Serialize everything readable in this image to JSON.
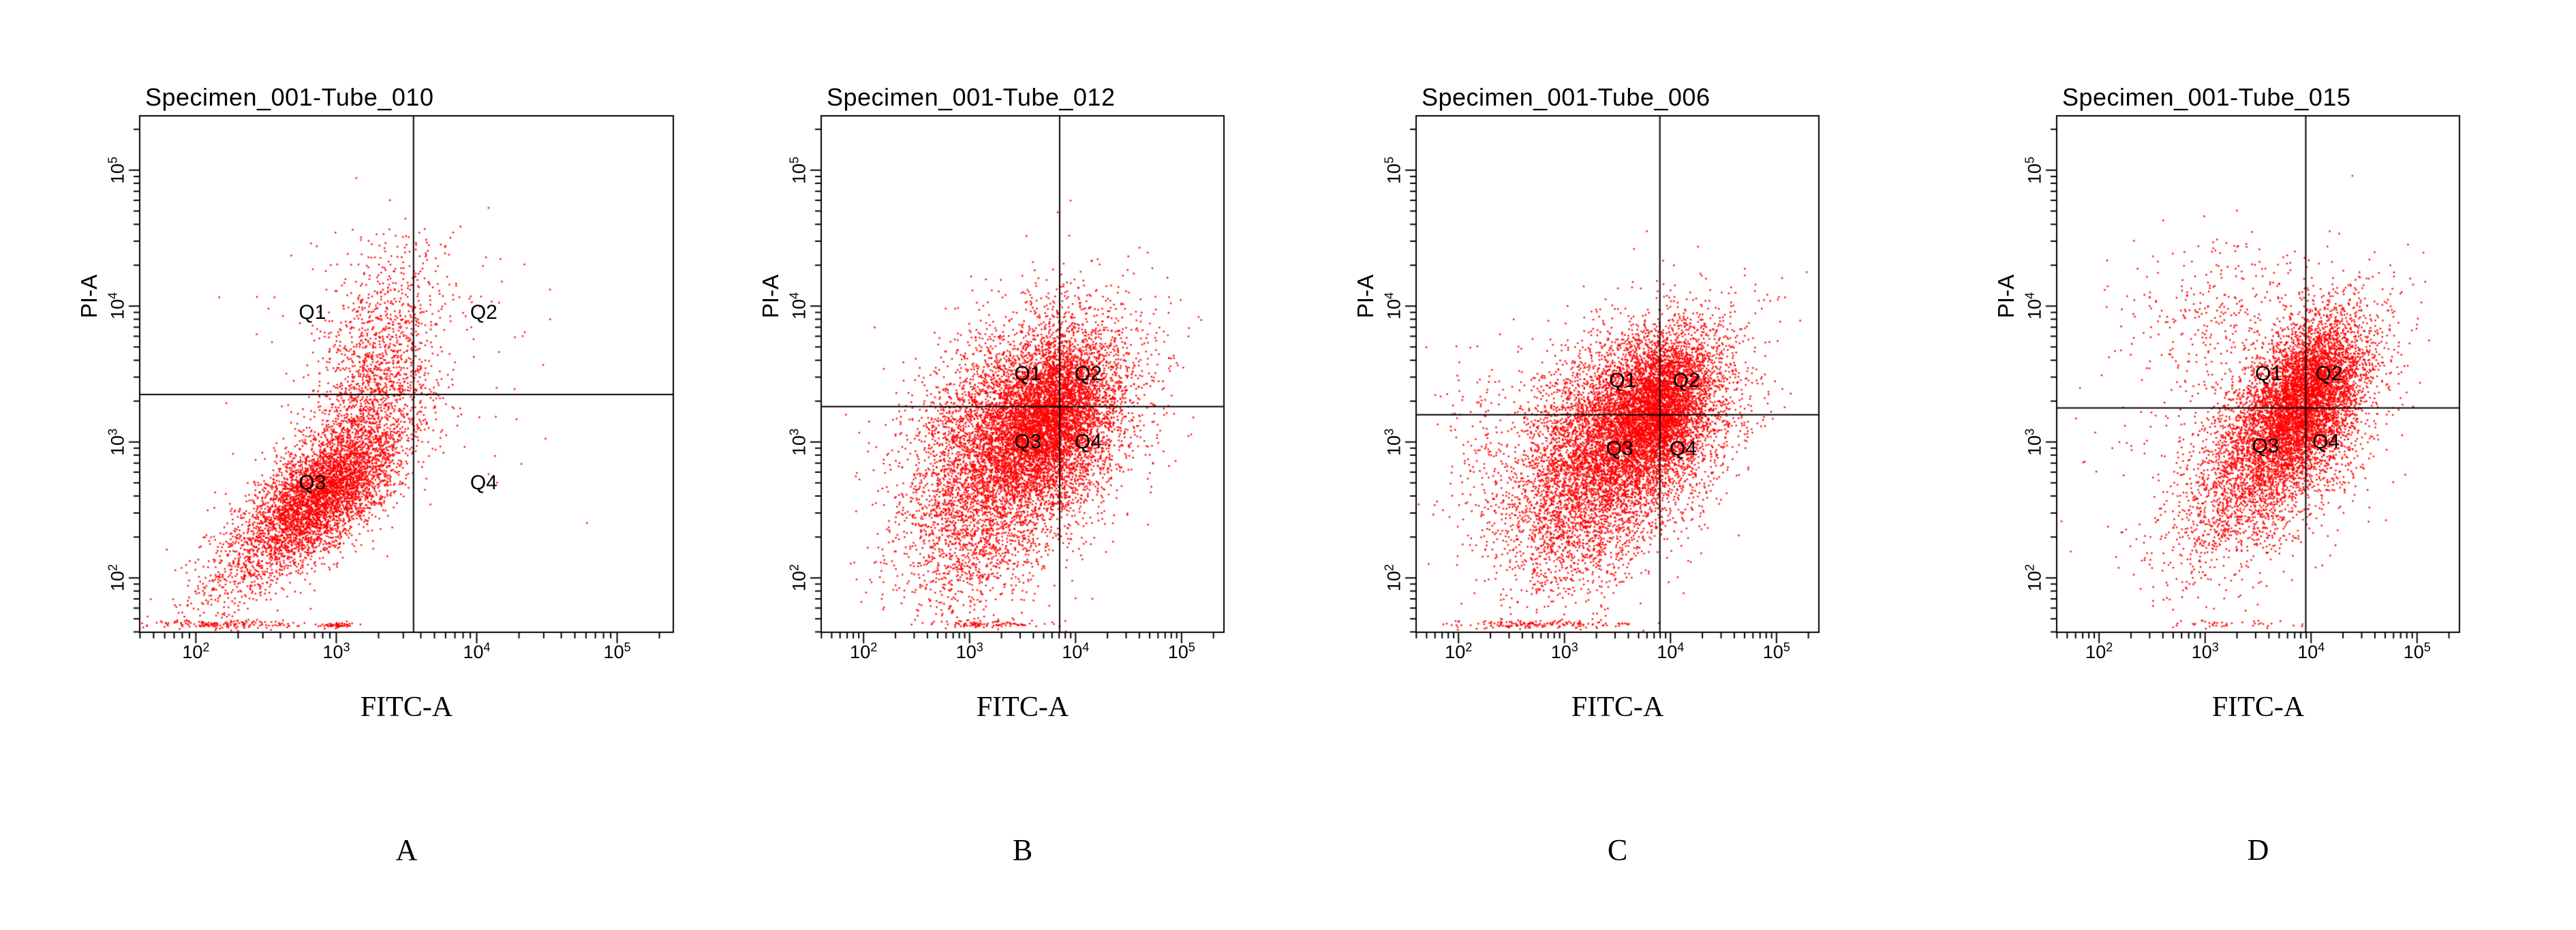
{
  "figure": {
    "background_color": "#FFFFFF",
    "point_color": "#FF0000",
    "axis_color": "#000000"
  },
  "chart_data": [
    {
      "type": "scatter",
      "panel_letter": "A",
      "title": "Specimen_001-Tube_010",
      "xlabel": "FITC-A",
      "ylabel": "PI-A",
      "x_scale": "log10",
      "y_scale": "log10",
      "xlim_log10": [
        1.6,
        5.4
      ],
      "ylim_log10": [
        1.6,
        5.4
      ],
      "x_tick_exponents": [
        2,
        3,
        4,
        5
      ],
      "y_tick_exponents": [
        2,
        3,
        4,
        5
      ],
      "grid": false,
      "quadrant_gate": {
        "x_log10": 3.55,
        "y_log10": 3.35
      },
      "quadrant_labels": [
        {
          "text": "Q1",
          "x_log10": 2.83,
          "y_log10": 3.95
        },
        {
          "text": "Q2",
          "x_log10": 4.05,
          "y_log10": 3.95
        },
        {
          "text": "Q3",
          "x_log10": 2.83,
          "y_log10": 2.7
        },
        {
          "text": "Q4",
          "x_log10": 4.05,
          "y_log10": 2.7
        }
      ],
      "seed": 101,
      "clusters": [
        {
          "count": 4500,
          "mean_log10": [
            2.9,
            2.62
          ],
          "sd_log10": [
            0.28,
            0.27
          ],
          "corr": 0.65
        },
        {
          "count": 1200,
          "mean_log10": [
            3.25,
            3.4
          ],
          "sd_log10": [
            0.22,
            0.35
          ],
          "corr": 0.4
        },
        {
          "count": 250,
          "mean_log10": [
            3.35,
            4.05
          ],
          "sd_log10": [
            0.25,
            0.3
          ],
          "corr": 0.2
        },
        {
          "count": 400,
          "mean_log10": [
            2.35,
            2.1
          ],
          "sd_log10": [
            0.25,
            0.22
          ],
          "corr": 0.5
        },
        {
          "count": 150,
          "mean_log10": [
            2.2,
            1.66
          ],
          "sd_log10": [
            0.25,
            0.015
          ],
          "corr": 0.0
        },
        {
          "count": 60,
          "mean_log10": [
            3.0,
            1.65
          ],
          "sd_log10": [
            0.07,
            0.01
          ],
          "corr": 0.0
        },
        {
          "count": 120,
          "mean_log10": [
            3.6,
            3.6
          ],
          "sd_log10": [
            0.6,
            0.5
          ],
          "corr": 0.1
        }
      ]
    },
    {
      "type": "scatter",
      "panel_letter": "B",
      "title": "Specimen_001-Tube_012",
      "xlabel": "FITC-A",
      "ylabel": "PI-A",
      "x_scale": "log10",
      "y_scale": "log10",
      "xlim_log10": [
        1.6,
        5.4
      ],
      "ylim_log10": [
        1.6,
        5.4
      ],
      "x_tick_exponents": [
        2,
        3,
        4,
        5
      ],
      "y_tick_exponents": [
        2,
        3,
        4,
        5
      ],
      "grid": false,
      "quadrant_gate": {
        "x_log10": 3.85,
        "y_log10": 3.26
      },
      "quadrant_labels": [
        {
          "text": "Q1",
          "x_log10": 3.55,
          "y_log10": 3.5
        },
        {
          "text": "Q2",
          "x_log10": 4.12,
          "y_log10": 3.5
        },
        {
          "text": "Q3",
          "x_log10": 3.55,
          "y_log10": 3.0
        },
        {
          "text": "Q4",
          "x_log10": 4.12,
          "y_log10": 3.0
        }
      ],
      "seed": 202,
      "clusters": [
        {
          "count": 7000,
          "mean_log10": [
            3.5,
            3.05
          ],
          "sd_log10": [
            0.5,
            0.42
          ],
          "corr": 0.35
        },
        {
          "count": 3000,
          "mean_log10": [
            3.8,
            3.2
          ],
          "sd_log10": [
            0.28,
            0.28
          ],
          "corr": 0.3
        },
        {
          "count": 700,
          "mean_log10": [
            3.0,
            2.2
          ],
          "sd_log10": [
            0.35,
            0.25
          ],
          "corr": 0.2
        },
        {
          "count": 100,
          "mean_log10": [
            3.2,
            1.66
          ],
          "sd_log10": [
            0.3,
            0.015
          ],
          "corr": 0.0
        }
      ]
    },
    {
      "type": "scatter",
      "panel_letter": "C",
      "title": "Specimen_001-Tube_006",
      "xlabel": "FITC-A",
      "ylabel": "PI-A",
      "x_scale": "log10",
      "y_scale": "log10",
      "xlim_log10": [
        1.6,
        5.4
      ],
      "ylim_log10": [
        1.6,
        5.4
      ],
      "x_tick_exponents": [
        2,
        3,
        4,
        5
      ],
      "y_tick_exponents": [
        2,
        3,
        4,
        5
      ],
      "grid": false,
      "quadrant_gate": {
        "x_log10": 3.9,
        "y_log10": 3.2
      },
      "quadrant_labels": [
        {
          "text": "Q1",
          "x_log10": 3.55,
          "y_log10": 3.45
        },
        {
          "text": "Q2",
          "x_log10": 4.15,
          "y_log10": 3.45
        },
        {
          "text": "Q3",
          "x_log10": 3.52,
          "y_log10": 2.95
        },
        {
          "text": "Q4",
          "x_log10": 4.12,
          "y_log10": 2.95
        }
      ],
      "seed": 303,
      "clusters": [
        {
          "count": 7000,
          "mean_log10": [
            3.55,
            3.05
          ],
          "sd_log10": [
            0.5,
            0.4
          ],
          "corr": 0.4
        },
        {
          "count": 3000,
          "mean_log10": [
            3.9,
            3.25
          ],
          "sd_log10": [
            0.26,
            0.26
          ],
          "corr": 0.3
        },
        {
          "count": 900,
          "mean_log10": [
            3.1,
            2.35
          ],
          "sd_log10": [
            0.4,
            0.28
          ],
          "corr": 0.25
        },
        {
          "count": 160,
          "mean_log10": [
            2.7,
            1.66
          ],
          "sd_log10": [
            0.45,
            0.015
          ],
          "corr": 0.0
        },
        {
          "count": 120,
          "mean_log10": [
            2.2,
            2.9
          ],
          "sd_log10": [
            0.2,
            0.45
          ],
          "corr": 0.0
        }
      ]
    },
    {
      "type": "scatter",
      "panel_letter": "D",
      "title": "Specimen_001-Tube_015",
      "xlabel": "FITC-A",
      "ylabel": "PI-A",
      "x_scale": "log10",
      "y_scale": "log10",
      "xlim_log10": [
        1.6,
        5.4
      ],
      "ylim_log10": [
        1.6,
        5.4
      ],
      "x_tick_exponents": [
        2,
        3,
        4,
        5
      ],
      "y_tick_exponents": [
        2,
        3,
        4,
        5
      ],
      "grid": false,
      "quadrant_gate": {
        "x_log10": 3.95,
        "y_log10": 3.25
      },
      "quadrant_labels": [
        {
          "text": "Q1",
          "x_log10": 3.6,
          "y_log10": 3.5
        },
        {
          "text": "Q2",
          "x_log10": 4.17,
          "y_log10": 3.5
        },
        {
          "text": "Q3",
          "x_log10": 3.57,
          "y_log10": 2.97
        },
        {
          "text": "Q4",
          "x_log10": 4.14,
          "y_log10": 3.0
        }
      ],
      "seed": 404,
      "clusters": [
        {
          "count": 5000,
          "mean_log10": [
            3.85,
            3.2
          ],
          "sd_log10": [
            0.38,
            0.38
          ],
          "corr": 0.5
        },
        {
          "count": 2000,
          "mean_log10": [
            4.0,
            3.4
          ],
          "sd_log10": [
            0.22,
            0.24
          ],
          "corr": 0.3
        },
        {
          "count": 900,
          "mean_log10": [
            3.3,
            2.65
          ],
          "sd_log10": [
            0.38,
            0.33
          ],
          "corr": 0.5
        },
        {
          "count": 250,
          "mean_log10": [
            3.05,
            3.95
          ],
          "sd_log10": [
            0.4,
            0.28
          ],
          "corr": 0.1
        },
        {
          "count": 300,
          "mean_log10": [
            3.4,
            3.2
          ],
          "sd_log10": [
            0.65,
            0.6
          ],
          "corr": 0.2
        },
        {
          "count": 40,
          "mean_log10": [
            3.3,
            1.66
          ],
          "sd_log10": [
            0.4,
            0.015
          ],
          "corr": 0.0
        }
      ]
    }
  ]
}
